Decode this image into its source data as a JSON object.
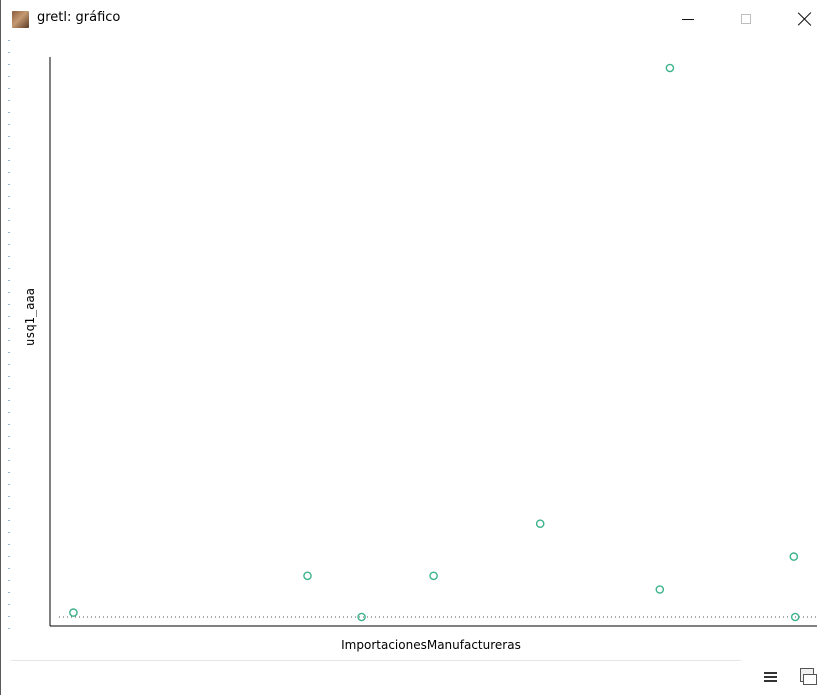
{
  "window": {
    "title": "gretl: gráfico",
    "app_icon": "gretl-app-icon",
    "buttons": {
      "minimize": "minimize-icon",
      "maximize": "maximize-icon",
      "close": "close-icon"
    }
  },
  "chart_data": {
    "type": "scatter",
    "title": "",
    "xlabel": "ImportacionesManufactureras",
    "ylabel": "usq1_aaa",
    "grid": false,
    "marker": "open-circle",
    "marker_color": "#3cb38b",
    "zero_line": true,
    "points": [
      {
        "x": 0.02,
        "y": 0.008
      },
      {
        "x": 0.345,
        "y": 0.075
      },
      {
        "x": 0.42,
        "y": 0.0
      },
      {
        "x": 0.52,
        "y": 0.075
      },
      {
        "x": 0.668,
        "y": 0.17
      },
      {
        "x": 0.834,
        "y": 0.05
      },
      {
        "x": 0.848,
        "y": 1.0
      },
      {
        "x": 1.02,
        "y": 0.11
      },
      {
        "x": 1.022,
        "y": 0.0
      }
    ],
    "xlim": [
      0,
      1.03
    ],
    "ylim": [
      -0.017,
      1.02
    ]
  },
  "toolbar": {
    "menu_icon": "hamburger-menu-icon",
    "print_icon": "print-icon"
  }
}
